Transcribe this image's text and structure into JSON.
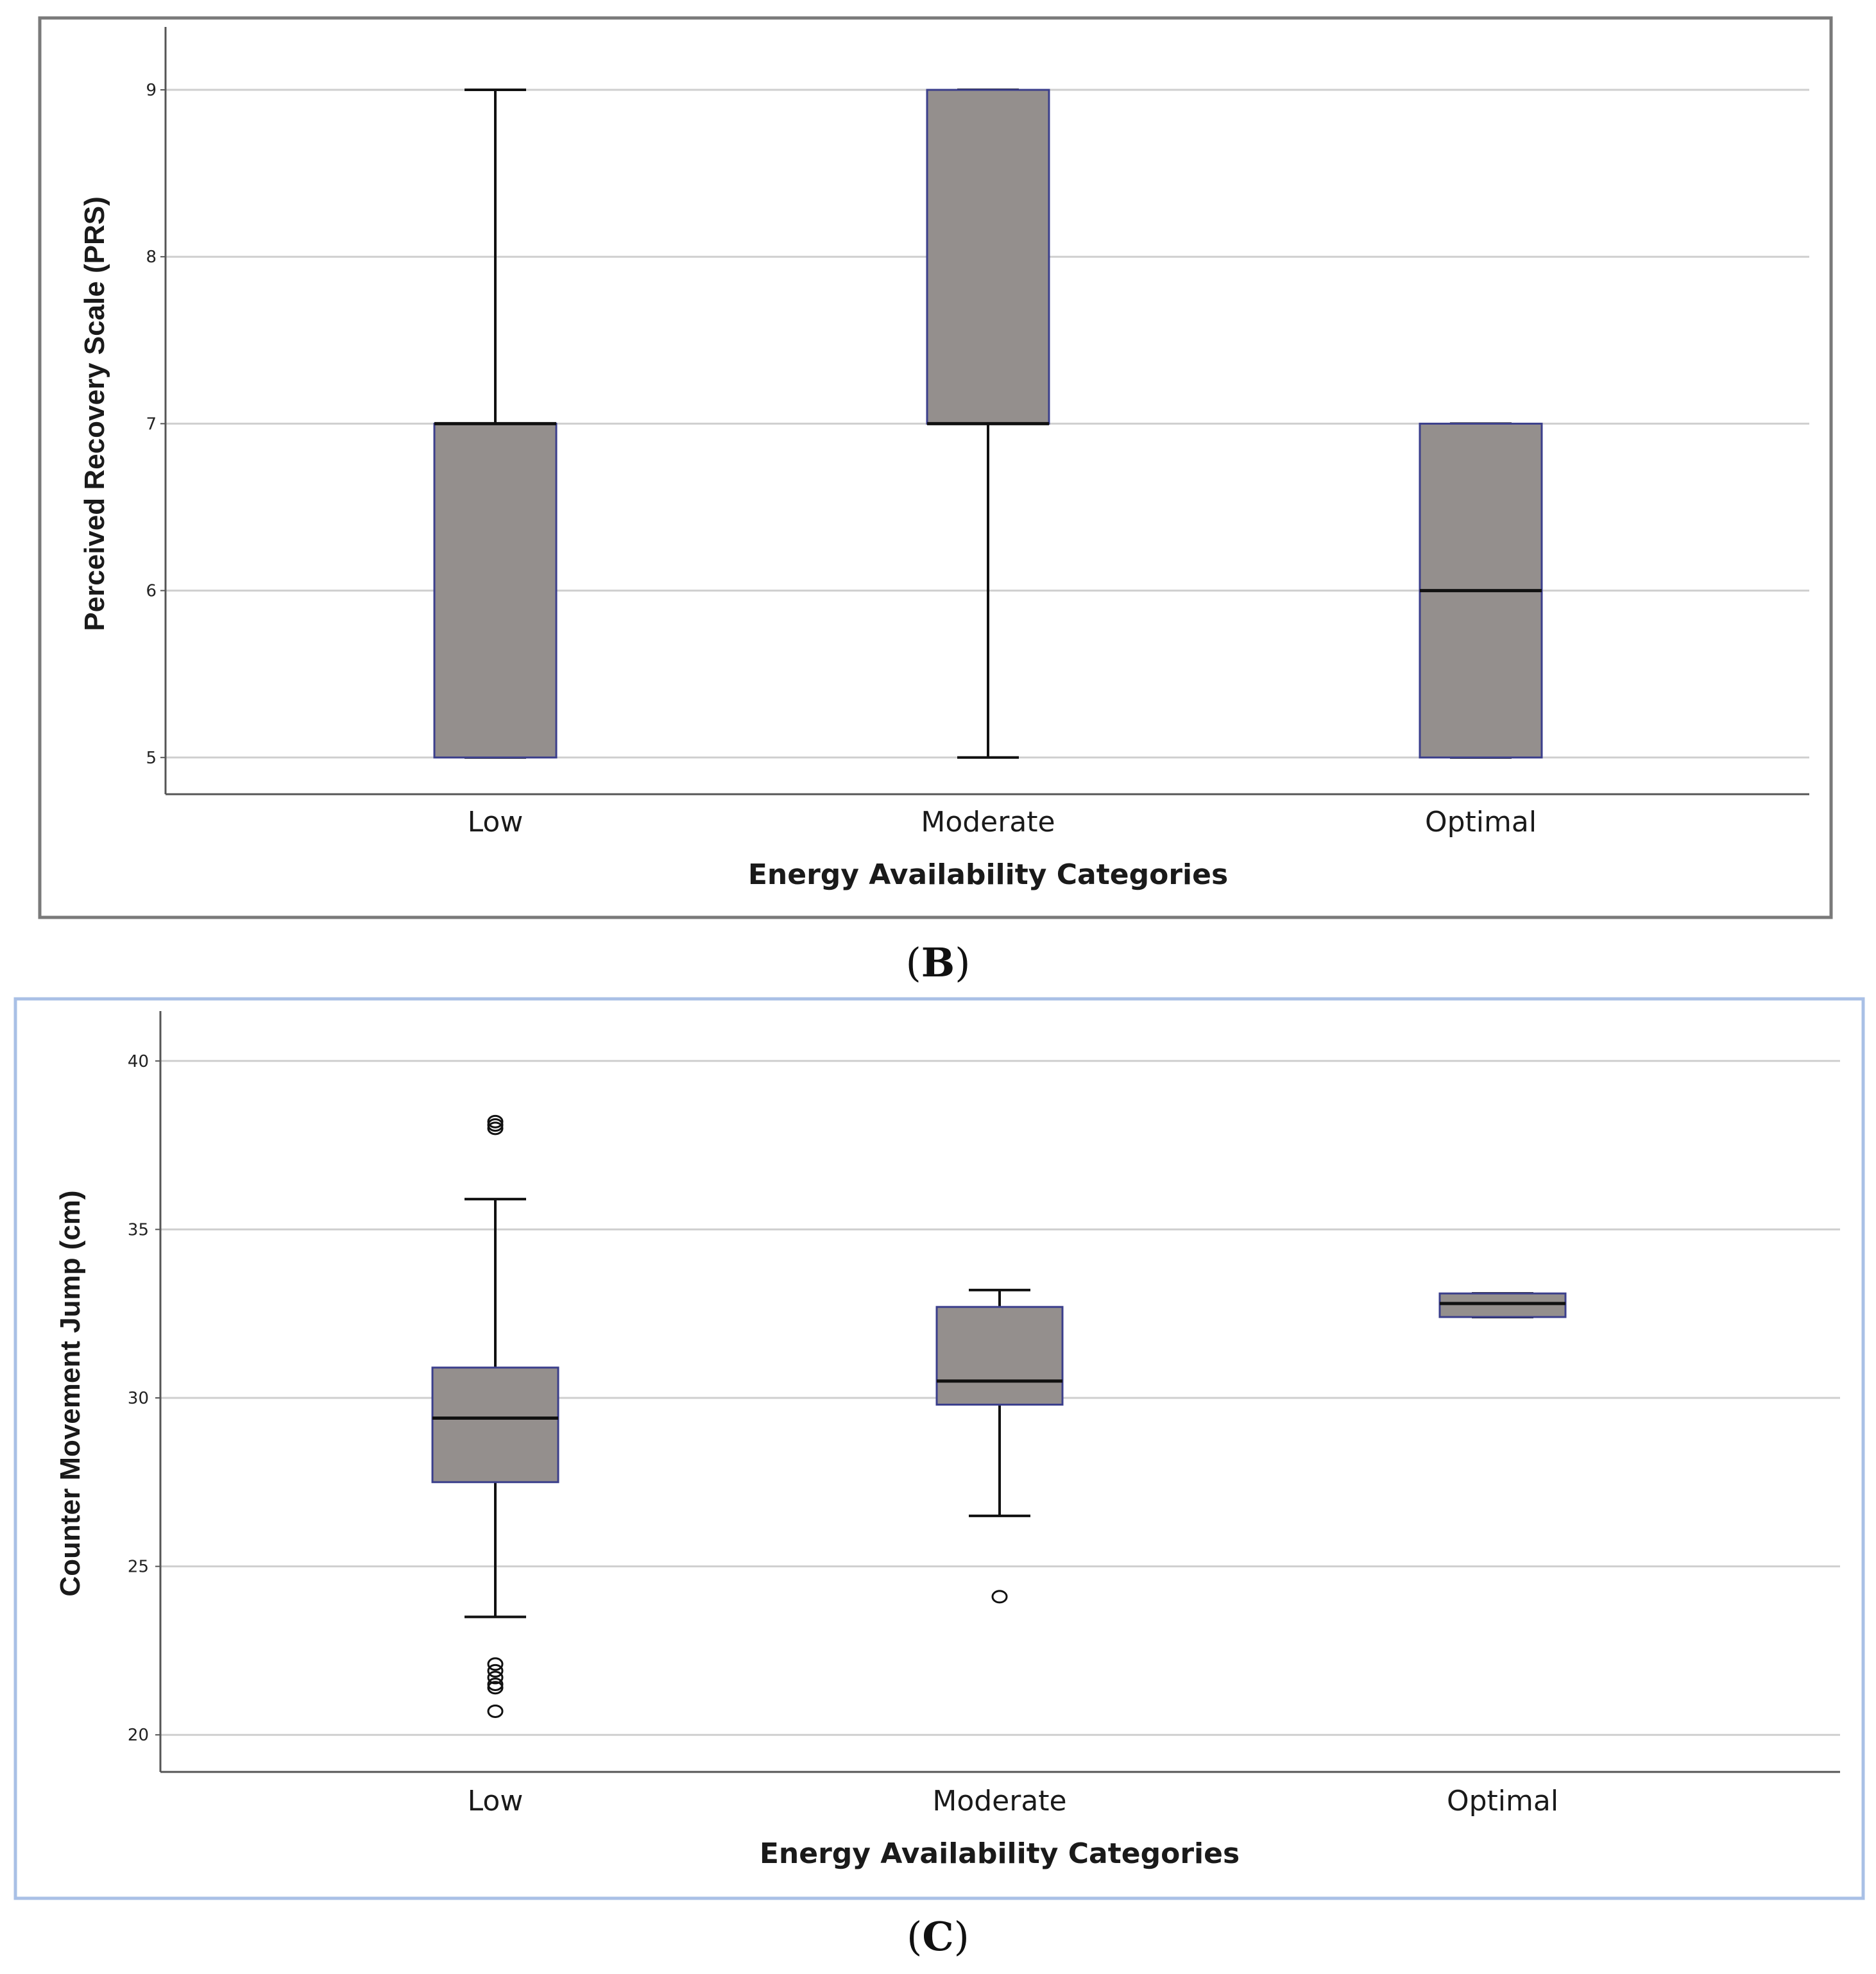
{
  "chart_data": [
    {
      "type": "box",
      "panel_label": "B",
      "title": "",
      "xlabel": "Energy Availability Categories",
      "ylabel": "Perceived Recovery Scale (PRS)",
      "ylim": [
        4.78,
        9.3
      ],
      "yticks": [
        5,
        6,
        7,
        8,
        9
      ],
      "grid": true,
      "categories": [
        "Low",
        "Moderate",
        "Optimal"
      ],
      "boxes": [
        {
          "category": "Low",
          "whisker_low": 5,
          "q1": 5,
          "median": 7,
          "q3": 7,
          "whisker_high": 9,
          "outliers": []
        },
        {
          "category": "Moderate",
          "whisker_low": 5,
          "q1": 7,
          "median": 7,
          "q3": 9,
          "whisker_high": 9,
          "outliers": []
        },
        {
          "category": "Optimal",
          "whisker_low": 5,
          "q1": 5,
          "median": 6,
          "q3": 7,
          "whisker_high": 7,
          "outliers": []
        }
      ],
      "colors": {
        "box_fill": "#948f8d",
        "box_edge": "#3b3f8c",
        "line": "#111111",
        "grid": "#cfcfcf",
        "frame": "#7a7a7a"
      }
    },
    {
      "type": "box",
      "panel_label": "C",
      "title": "",
      "xlabel": "Energy Availability Categories",
      "ylabel": "Counter Movement Jump (cm)",
      "ylim": [
        18.9,
        41.1
      ],
      "yticks": [
        20,
        25,
        30,
        35,
        40
      ],
      "grid": true,
      "categories": [
        "Low",
        "Moderate",
        "Optimal"
      ],
      "boxes": [
        {
          "category": "Low",
          "whisker_low": 23.5,
          "q1": 27.5,
          "median": 29.4,
          "q3": 30.9,
          "whisker_high": 35.9,
          "outliers": [
            38.0,
            38.1,
            38.2,
            22.1,
            21.9,
            21.7,
            21.5,
            21.4,
            20.7
          ]
        },
        {
          "category": "Moderate",
          "whisker_low": 26.5,
          "q1": 29.8,
          "median": 30.5,
          "q3": 32.7,
          "whisker_high": 33.2,
          "outliers": [
            24.1
          ]
        },
        {
          "category": "Optimal",
          "whisker_low": 32.4,
          "q1": 32.4,
          "median": 32.8,
          "q3": 33.1,
          "whisker_high": 33.1,
          "outliers": []
        }
      ],
      "colors": {
        "box_fill": "#948f8d",
        "box_edge": "#3b3f8c",
        "line": "#111111",
        "grid": "#cfcfcf",
        "frame": "#a9c0e6"
      }
    }
  ]
}
